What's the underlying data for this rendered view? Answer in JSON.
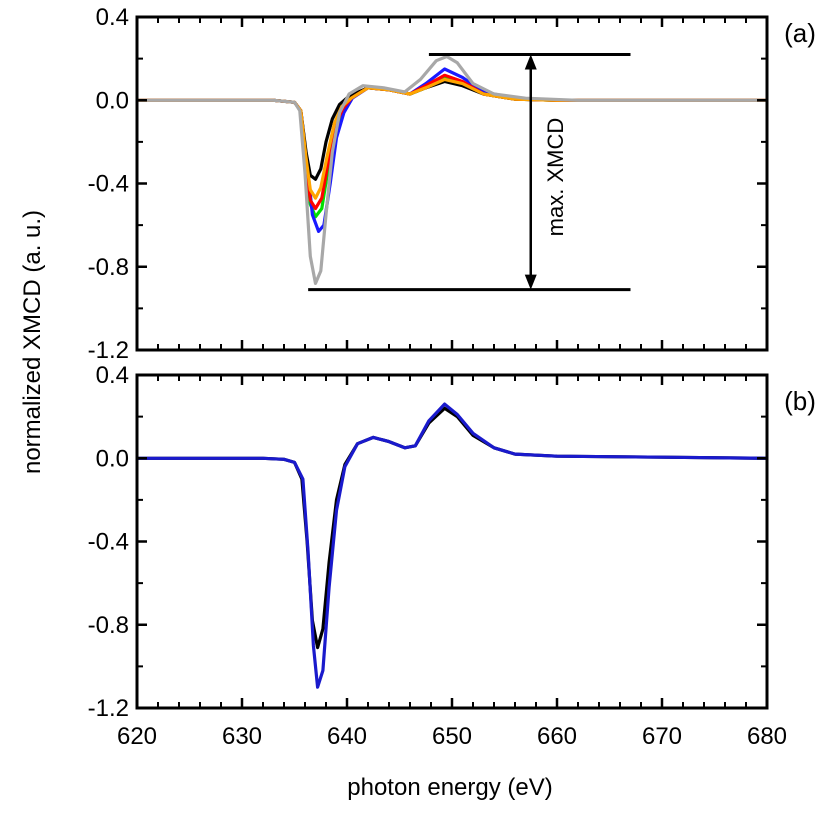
{
  "chart_data": [
    {
      "type": "line",
      "panel_label": "(a)",
      "ylabel": "normalized XMCD (a. u.)",
      "xlabel": "photon energy (eV)",
      "xlim": [
        620,
        680
      ],
      "ylim": [
        -1.2,
        0.4
      ],
      "yticks": [
        "0.4",
        "0.0",
        "-0.4",
        "-0.8",
        "-1.2"
      ],
      "xticks": [
        "620",
        "630",
        "640",
        "650",
        "660",
        "670",
        "680"
      ],
      "grid": false,
      "annotation": {
        "text": "max. XMCD",
        "top_value": 0.22,
        "bottom_value": -0.91,
        "x_value": 657.5
      },
      "series": [
        {
          "color": "#00e000",
          "points": [
            [
              620,
              0
            ],
            [
              633,
              0
            ],
            [
              635,
              -0.01
            ],
            [
              635.6,
              -0.05
            ],
            [
              636.1,
              -0.3
            ],
            [
              636.5,
              -0.5
            ],
            [
              637,
              -0.56
            ],
            [
              637.6,
              -0.52
            ],
            [
              638.2,
              -0.33
            ],
            [
              638.9,
              -0.15
            ],
            [
              639.6,
              -0.05
            ],
            [
              640.4,
              0.01
            ],
            [
              642,
              0.06
            ],
            [
              644,
              0.05
            ],
            [
              646,
              0.03
            ],
            [
              647.5,
              0.06
            ],
            [
              649.3,
              0.11
            ],
            [
              651,
              0.08
            ],
            [
              653,
              0.03
            ],
            [
              656,
              0.005
            ],
            [
              660,
              0
            ],
            [
              680,
              0
            ]
          ]
        },
        {
          "color": "#1a1aff",
          "points": [
            [
              620,
              0
            ],
            [
              633,
              0
            ],
            [
              635,
              -0.01
            ],
            [
              635.6,
              -0.05
            ],
            [
              636.2,
              -0.3
            ],
            [
              636.7,
              -0.55
            ],
            [
              637.3,
              -0.63
            ],
            [
              637.8,
              -0.6
            ],
            [
              638.4,
              -0.4
            ],
            [
              639,
              -0.18
            ],
            [
              639.7,
              -0.06
            ],
            [
              640.5,
              0.01
            ],
            [
              642,
              0.06
            ],
            [
              644,
              0.05
            ],
            [
              646,
              0.03
            ],
            [
              647.5,
              0.08
            ],
            [
              649.3,
              0.15
            ],
            [
              651,
              0.11
            ],
            [
              653,
              0.04
            ],
            [
              656,
              0.01
            ],
            [
              660,
              0
            ],
            [
              680,
              0
            ]
          ]
        },
        {
          "color": "#000000",
          "points": [
            [
              620,
              0
            ],
            [
              633,
              0
            ],
            [
              635,
              -0.01
            ],
            [
              635.6,
              -0.05
            ],
            [
              636.1,
              -0.25
            ],
            [
              636.5,
              -0.36
            ],
            [
              637,
              -0.38
            ],
            [
              637.5,
              -0.33
            ],
            [
              638,
              -0.2
            ],
            [
              638.6,
              -0.09
            ],
            [
              639.3,
              -0.02
            ],
            [
              640.2,
              0.02
            ],
            [
              642,
              0.06
            ],
            [
              644,
              0.05
            ],
            [
              646,
              0.03
            ],
            [
              647.5,
              0.06
            ],
            [
              649.3,
              0.09
            ],
            [
              651,
              0.07
            ],
            [
              653,
              0.03
            ],
            [
              656,
              0.005
            ],
            [
              660,
              0
            ],
            [
              680,
              0
            ]
          ]
        },
        {
          "color": "#ff0000",
          "points": [
            [
              620,
              0
            ],
            [
              633,
              0
            ],
            [
              635,
              -0.01
            ],
            [
              635.6,
              -0.05
            ],
            [
              636.1,
              -0.3
            ],
            [
              636.5,
              -0.48
            ],
            [
              637,
              -0.52
            ],
            [
              637.6,
              -0.47
            ],
            [
              638.2,
              -0.3
            ],
            [
              638.9,
              -0.12
            ],
            [
              639.6,
              -0.04
            ],
            [
              640.4,
              0.01
            ],
            [
              642,
              0.06
            ],
            [
              644,
              0.05
            ],
            [
              646,
              0.03
            ],
            [
              647.5,
              0.07
            ],
            [
              649.3,
              0.12
            ],
            [
              651,
              0.09
            ],
            [
              653,
              0.03
            ],
            [
              656,
              0.005
            ],
            [
              660,
              0
            ],
            [
              680,
              0
            ]
          ]
        },
        {
          "color": "#ffa500",
          "points": [
            [
              620,
              0
            ],
            [
              633,
              0
            ],
            [
              635,
              -0.01
            ],
            [
              635.6,
              -0.05
            ],
            [
              636.1,
              -0.28
            ],
            [
              636.5,
              -0.43
            ],
            [
              637,
              -0.47
            ],
            [
              637.5,
              -0.42
            ],
            [
              638.1,
              -0.27
            ],
            [
              638.8,
              -0.11
            ],
            [
              639.5,
              -0.03
            ],
            [
              640.4,
              0.01
            ],
            [
              642,
              0.06
            ],
            [
              644,
              0.05
            ],
            [
              646,
              0.03
            ],
            [
              647.5,
              0.06
            ],
            [
              649.3,
              0.1
            ],
            [
              651,
              0.08
            ],
            [
              653,
              0.03
            ],
            [
              656,
              0.005
            ],
            [
              660,
              0
            ],
            [
              680,
              0
            ]
          ]
        },
        {
          "color": "#a8a8a8",
          "points": [
            [
              620,
              0
            ],
            [
              633,
              0
            ],
            [
              635,
              -0.01
            ],
            [
              635.5,
              -0.05
            ],
            [
              636,
              -0.35
            ],
            [
              636.5,
              -0.75
            ],
            [
              637,
              -0.88
            ],
            [
              637.5,
              -0.82
            ],
            [
              638,
              -0.55
            ],
            [
              638.6,
              -0.25
            ],
            [
              639.3,
              -0.06
            ],
            [
              640.2,
              0.03
            ],
            [
              641.5,
              0.07
            ],
            [
              643.5,
              0.06
            ],
            [
              645.5,
              0.04
            ],
            [
              647,
              0.1
            ],
            [
              648.5,
              0.19
            ],
            [
              649.5,
              0.21
            ],
            [
              650.5,
              0.18
            ],
            [
              652,
              0.08
            ],
            [
              654,
              0.03
            ],
            [
              657,
              0.01
            ],
            [
              662,
              0
            ],
            [
              680,
              0
            ]
          ]
        }
      ]
    },
    {
      "type": "line",
      "panel_label": "(b)",
      "ylabel": "normalized XMCD (a. u.)",
      "xlabel": "photon energy (eV)",
      "xlim": [
        620,
        680
      ],
      "ylim": [
        -1.2,
        0.4
      ],
      "yticks": [
        "0.4",
        "0.0",
        "-0.4",
        "-0.8",
        "-1.2"
      ],
      "xticks": [
        "620",
        "630",
        "640",
        "650",
        "660",
        "670",
        "680"
      ],
      "grid": false,
      "series": [
        {
          "color": "#000000",
          "points": [
            [
              620,
              0
            ],
            [
              632,
              0
            ],
            [
              634,
              -0.005
            ],
            [
              635,
              -0.02
            ],
            [
              635.7,
              -0.1
            ],
            [
              636.2,
              -0.4
            ],
            [
              636.7,
              -0.78
            ],
            [
              637.2,
              -0.91
            ],
            [
              637.7,
              -0.82
            ],
            [
              638.3,
              -0.5
            ],
            [
              639,
              -0.2
            ],
            [
              639.8,
              -0.03
            ],
            [
              641,
              0.07
            ],
            [
              642.5,
              0.1
            ],
            [
              644,
              0.08
            ],
            [
              645.5,
              0.05
            ],
            [
              646.5,
              0.06
            ],
            [
              647.8,
              0.17
            ],
            [
              649.3,
              0.24
            ],
            [
              650.5,
              0.2
            ],
            [
              652,
              0.11
            ],
            [
              654,
              0.05
            ],
            [
              656,
              0.02
            ],
            [
              660,
              0.01
            ],
            [
              670,
              0.005
            ],
            [
              680,
              0
            ]
          ]
        },
        {
          "color": "#1a1acc",
          "points": [
            [
              620,
              0
            ],
            [
              632,
              0
            ],
            [
              634,
              -0.005
            ],
            [
              635,
              -0.02
            ],
            [
              635.8,
              -0.1
            ],
            [
              636.3,
              -0.45
            ],
            [
              636.8,
              -0.9
            ],
            [
              637.2,
              -1.1
            ],
            [
              637.7,
              -1.02
            ],
            [
              638.3,
              -0.62
            ],
            [
              639,
              -0.25
            ],
            [
              639.8,
              -0.04
            ],
            [
              641,
              0.07
            ],
            [
              642.5,
              0.1
            ],
            [
              644,
              0.08
            ],
            [
              645.5,
              0.05
            ],
            [
              646.5,
              0.06
            ],
            [
              647.8,
              0.18
            ],
            [
              649.3,
              0.26
            ],
            [
              650.5,
              0.21
            ],
            [
              652,
              0.12
            ],
            [
              654,
              0.05
            ],
            [
              656,
              0.02
            ],
            [
              660,
              0.01
            ],
            [
              670,
              0.005
            ],
            [
              680,
              0
            ]
          ]
        }
      ]
    }
  ]
}
